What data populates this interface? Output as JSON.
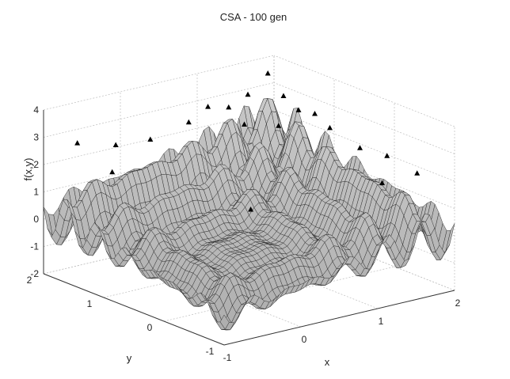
{
  "chart_data": {
    "type": "surface",
    "title": "CSA - 100 gen",
    "xlabel": "x",
    "ylabel": "y",
    "zlabel": "f(x,y)",
    "xlim": [
      -1,
      2
    ],
    "ylim": [
      -1,
      2
    ],
    "zlim": [
      -2,
      4
    ],
    "x_ticks": [
      "-1",
      "0",
      "1",
      "2"
    ],
    "y_ticks": [
      "-1",
      "0",
      "1",
      "2"
    ],
    "z_ticks": [
      "-2",
      "-1",
      "0",
      "1",
      "2",
      "3",
      "4"
    ],
    "grid": true,
    "surface_color": "#c8c8c8",
    "mesh_color": "#2a2a2a",
    "marker_color": "#000000",
    "markers": [
      {
        "x": 1.63,
        "y": 1.63,
        "z": 3.9
      },
      {
        "x": 1.37,
        "y": 1.63,
        "z": 3.3
      },
      {
        "x": 1.63,
        "y": 1.37,
        "z": 3.3
      },
      {
        "x": 1.12,
        "y": 1.63,
        "z": 3.0
      },
      {
        "x": 1.63,
        "y": 1.12,
        "z": 3.0
      },
      {
        "x": 0.85,
        "y": 1.63,
        "z": 3.2
      },
      {
        "x": 1.63,
        "y": 0.85,
        "z": 3.1
      },
      {
        "x": 0.6,
        "y": 1.63,
        "z": 2.8
      },
      {
        "x": 1.63,
        "y": 0.6,
        "z": 2.8
      },
      {
        "x": -0.85,
        "y": 1.63,
        "z": 3.0
      },
      {
        "x": 1.63,
        "y": -0.85,
        "z": 2.4
      },
      {
        "x": 0.1,
        "y": 1.63,
        "z": 2.5
      },
      {
        "x": 1.63,
        "y": 0.1,
        "z": 2.5
      },
      {
        "x": -0.35,
        "y": 1.63,
        "z": 2.6
      },
      {
        "x": 1.63,
        "y": -0.35,
        "z": 2.6
      },
      {
        "x": 1.37,
        "y": 1.12,
        "z": 2.6
      },
      {
        "x": 1.12,
        "y": 1.37,
        "z": 2.6
      },
      {
        "x": 0.6,
        "y": 0.6,
        "z": 0.5
      },
      {
        "x": 1.37,
        "y": -0.6,
        "z": 2.0
      },
      {
        "x": -0.6,
        "y": 1.37,
        "z": 2.0
      }
    ]
  }
}
